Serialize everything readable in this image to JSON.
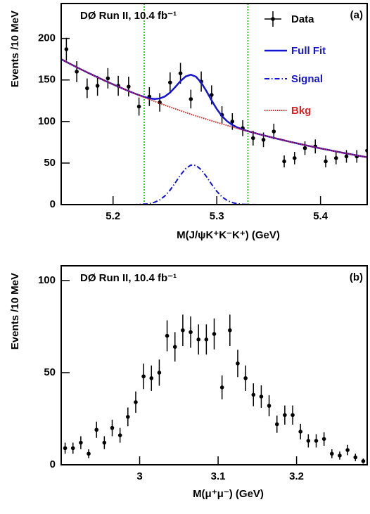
{
  "chart_data": [
    {
      "type": "line",
      "title": "DØ Run II, 10.4 fb⁻¹",
      "panel_label": "(a)",
      "x_label": "M(J/ψK⁺K⁻K⁺) (GeV)",
      "y_label": "Events /10 MeV",
      "xlim": [
        5.15,
        5.445
      ],
      "ylim": [
        0,
        242
      ],
      "xticks": [
        5.2,
        5.3,
        5.4
      ],
      "yticks": [
        0,
        50,
        100,
        150,
        200
      ],
      "vlines": [
        5.23,
        5.33
      ],
      "vline_color": "#33cc33",
      "legend": true,
      "series": [
        {
          "name": "Data",
          "style": "points",
          "color": "#000000",
          "label_color": "#000000",
          "x": [
            5.155,
            5.165,
            5.175,
            5.185,
            5.195,
            5.205,
            5.215,
            5.225,
            5.235,
            5.245,
            5.255,
            5.265,
            5.275,
            5.285,
            5.295,
            5.305,
            5.315,
            5.325,
            5.335,
            5.345,
            5.355,
            5.365,
            5.375,
            5.385,
            5.395,
            5.405,
            5.415,
            5.425,
            5.435,
            5.445
          ],
          "values": [
            187,
            160,
            140,
            143,
            152,
            143,
            142,
            118,
            130,
            123,
            147,
            158,
            127,
            148,
            132,
            108,
            100,
            92,
            80,
            78,
            88,
            52,
            56,
            68,
            70,
            52,
            56,
            58,
            58,
            65
          ],
          "errors": [
            13.7,
            12.6,
            11.8,
            12.0,
            12.3,
            12.0,
            11.9,
            10.9,
            11.4,
            11.1,
            12.1,
            12.6,
            11.3,
            12.2,
            11.5,
            10.4,
            10,
            9.6,
            8.9,
            8.8,
            9.4,
            7.2,
            7.5,
            8.2,
            8.4,
            7.2,
            7.5,
            7.6,
            7.6,
            8.1
          ]
        },
        {
          "name": "Full Fit",
          "style": "solid",
          "color": "#1414d2",
          "label_color": "#1414d2",
          "x": [
            5.15,
            5.16,
            5.17,
            5.18,
            5.19,
            5.2,
            5.21,
            5.22,
            5.225,
            5.23,
            5.235,
            5.24,
            5.245,
            5.25,
            5.255,
            5.26,
            5.265,
            5.27,
            5.275,
            5.28,
            5.285,
            5.29,
            5.295,
            5.3,
            5.305,
            5.31,
            5.315,
            5.32,
            5.325,
            5.33,
            5.34,
            5.35,
            5.36,
            5.37,
            5.38,
            5.39,
            5.4,
            5.41,
            5.42,
            5.43,
            5.44,
            5.445
          ],
          "values": [
            175,
            168.5,
            162.2,
            156.2,
            150.3,
            144.7,
            139.3,
            134.1,
            131.8,
            129.6,
            127.9,
            127.1,
            127.7,
            130.2,
            134.9,
            141.5,
            148.7,
            154.2,
            156.4,
            153.9,
            146.8,
            136.6,
            125.4,
            115.0,
            106.5,
            100.3,
            95.9,
            92.7,
            90.4,
            88.4,
            85.0,
            81.8,
            78.8,
            75.8,
            73.0,
            70.3,
            67.7,
            65.2,
            62.7,
            60.4,
            58.1,
            57.1
          ]
        },
        {
          "name": "Signal",
          "style": "dashdot",
          "color": "#1414d2",
          "label_color": "#1414d2",
          "x": [
            5.15,
            5.16,
            5.17,
            5.18,
            5.19,
            5.2,
            5.21,
            5.22,
            5.225,
            5.23,
            5.235,
            5.24,
            5.245,
            5.25,
            5.255,
            5.26,
            5.265,
            5.27,
            5.275,
            5.28,
            5.285,
            5.29,
            5.295,
            5.3,
            5.305,
            5.31,
            5.315,
            5.32,
            5.325,
            5.33,
            5.34,
            5.35,
            5.36,
            5.37,
            5.38,
            5.39,
            5.4,
            5.41,
            5.42,
            5.43,
            5.44,
            5.445
          ],
          "values": [
            0,
            0,
            0,
            0,
            0,
            0,
            0,
            0,
            0.2,
            0.5,
            1.2,
            2.8,
            5.7,
            10.5,
            17.5,
            26.3,
            35.6,
            43.3,
            47.6,
            47.1,
            42.0,
            33.8,
            24.5,
            16.0,
            9.4,
            5.0,
            2.4,
            1.0,
            0.4,
            0.1,
            0,
            0,
            0,
            0,
            0,
            0,
            0,
            0,
            0,
            0,
            0,
            0
          ]
        },
        {
          "name": "Bkg",
          "style": "dotted",
          "color": "#e02020",
          "label_color": "#e02020",
          "x": [
            5.15,
            5.16,
            5.17,
            5.18,
            5.19,
            5.2,
            5.21,
            5.22,
            5.225,
            5.23,
            5.235,
            5.24,
            5.245,
            5.25,
            5.255,
            5.26,
            5.265,
            5.27,
            5.275,
            5.28,
            5.285,
            5.29,
            5.295,
            5.3,
            5.305,
            5.31,
            5.315,
            5.32,
            5.325,
            5.33,
            5.34,
            5.35,
            5.36,
            5.37,
            5.38,
            5.39,
            5.4,
            5.41,
            5.42,
            5.43,
            5.44,
            5.445
          ],
          "values": [
            175,
            168.5,
            162.2,
            156.2,
            150.3,
            144.7,
            139.3,
            134.1,
            131.6,
            129.1,
            126.7,
            124.3,
            122.0,
            119.7,
            117.4,
            115.2,
            113.1,
            110.9,
            108.8,
            106.8,
            104.8,
            102.8,
            100.9,
            99.0,
            97.1,
            95.3,
            93.5,
            91.7,
            90.0,
            88.3,
            85.0,
            81.8,
            78.8,
            75.8,
            73.0,
            70.3,
            67.7,
            65.2,
            62.7,
            60.4,
            58.1,
            57.1
          ]
        }
      ]
    },
    {
      "type": "line",
      "title": "DØ Run II, 10.4 fb⁻¹",
      "panel_label": "(b)",
      "x_label": "M(μ⁺μ⁻) (GeV)",
      "y_label": "Events /10 MeV",
      "xlim": [
        2.9,
        3.29
      ],
      "ylim": [
        0,
        108
      ],
      "xticks": [
        3,
        3.1,
        3.2
      ],
      "yticks": [
        0,
        50,
        100
      ],
      "series": [
        {
          "style": "points",
          "color": "#000000",
          "x": [
            2.905,
            2.915,
            2.925,
            2.935,
            2.945,
            2.955,
            2.965,
            2.975,
            2.985,
            2.995,
            3.005,
            3.015,
            3.025,
            3.035,
            3.045,
            3.055,
            3.065,
            3.075,
            3.085,
            3.095,
            3.105,
            3.115,
            3.125,
            3.135,
            3.145,
            3.155,
            3.165,
            3.175,
            3.185,
            3.195,
            3.205,
            3.215,
            3.225,
            3.235,
            3.245,
            3.255,
            3.265,
            3.275,
            3.285
          ],
          "values": [
            9,
            9,
            12,
            6,
            19,
            12,
            20,
            16,
            26,
            34,
            48,
            47,
            50,
            70,
            64,
            73,
            72,
            68,
            68,
            71,
            42,
            73,
            55,
            47,
            38,
            37,
            32,
            22,
            27,
            27,
            18,
            13,
            13,
            14,
            6,
            5,
            8,
            4,
            2
          ],
          "errors": [
            3,
            3,
            3.5,
            2.4,
            4.4,
            3.5,
            4.5,
            4,
            5.1,
            5.8,
            6.9,
            6.9,
            7.1,
            8.4,
            8,
            8.5,
            8.5,
            8.2,
            8.2,
            8.4,
            6.5,
            8.5,
            7.4,
            6.9,
            6.2,
            6.1,
            5.7,
            4.7,
            5.2,
            5.2,
            4.2,
            3.6,
            3.6,
            3.7,
            2.4,
            2.2,
            2.8,
            2,
            1.4
          ]
        }
      ]
    }
  ]
}
